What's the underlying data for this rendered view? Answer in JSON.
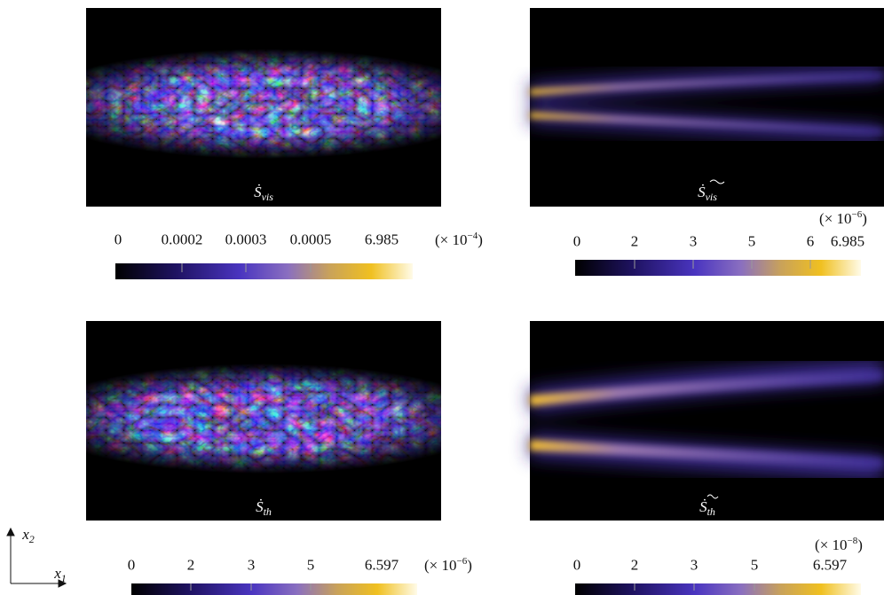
{
  "panels": [
    {
      "label": {
        "symbol": "Ṡ",
        "subscript": "vis"
      },
      "colorbar": {
        "ticks": [
          "0",
          "0.0002",
          "0.0003",
          "0.0005",
          "6.985"
        ],
        "scale": {
          "prefix": "(× 10",
          "exponent": "−4",
          "suffix": ")"
        }
      }
    },
    {
      "label": {
        "symbol": "Ṡ",
        "subscript": "vis"
      },
      "colorbar": {
        "ticks": [
          "0",
          "2",
          "3",
          "5",
          "6",
          "6.985"
        ],
        "scale": {
          "prefix": "(× 10",
          "exponent": "−6",
          "suffix": ")"
        }
      }
    },
    {
      "label": {
        "symbol": "Ṡ",
        "subscript": "th"
      },
      "colorbar": {
        "ticks": [
          "0",
          "2",
          "3",
          "5",
          "6.597"
        ],
        "scale": {
          "prefix": "(× 10",
          "exponent": "−6",
          "suffix": ")"
        }
      }
    },
    {
      "label": {
        "symbol": "Ṡ",
        "subscript": "th"
      },
      "colorbar": {
        "ticks": [
          "0",
          "2",
          "3",
          "5",
          "6.597"
        ],
        "scale": {
          "prefix": "(× 10",
          "exponent": "−8",
          "suffix": ")"
        }
      }
    }
  ],
  "axes": {
    "vertical": {
      "symbol": "x",
      "subscript": "2"
    },
    "horizontal": {
      "symbol": "x",
      "subscript": "1"
    }
  }
}
